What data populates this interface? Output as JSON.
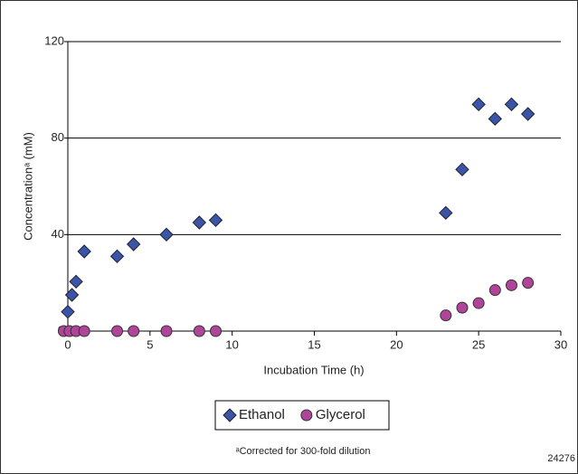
{
  "chart_data": {
    "type": "scatter",
    "x_label": "Incubation Time (h)",
    "y_label": "Concentrationᵃ (mM)",
    "footnote": "ᵃCorrected for 300-fold dilution",
    "figure_id": "24276",
    "xlim": [
      0,
      30
    ],
    "xticks": [
      0,
      5,
      10,
      15,
      20,
      25,
      30
    ],
    "ylim": [
      0,
      120
    ],
    "yticks": [
      0,
      40,
      80,
      120
    ],
    "grid": true,
    "legend": "bottom",
    "series": [
      {
        "name": "Ethanol",
        "color": "#3a55a8",
        "marker": "diamond",
        "x": [
          0,
          0.25,
          0.5,
          1,
          3,
          4,
          6,
          8,
          9,
          23,
          24,
          25,
          26,
          27,
          28
        ],
        "values": [
          8,
          15,
          20.5,
          33,
          31,
          36,
          40,
          45,
          46,
          49,
          67,
          94,
          88,
          94,
          90
        ]
      },
      {
        "name": "Glycerol",
        "color": "#b0449a",
        "marker": "circle",
        "x": [
          -0.25,
          0.1,
          0.5,
          1,
          3,
          4,
          6,
          8,
          9,
          23,
          24,
          25,
          26,
          27,
          28
        ],
        "values": [
          0,
          0,
          0,
          0,
          0,
          0,
          0,
          0,
          0,
          6.5,
          9.7,
          11.6,
          17,
          19,
          20
        ]
      }
    ]
  }
}
